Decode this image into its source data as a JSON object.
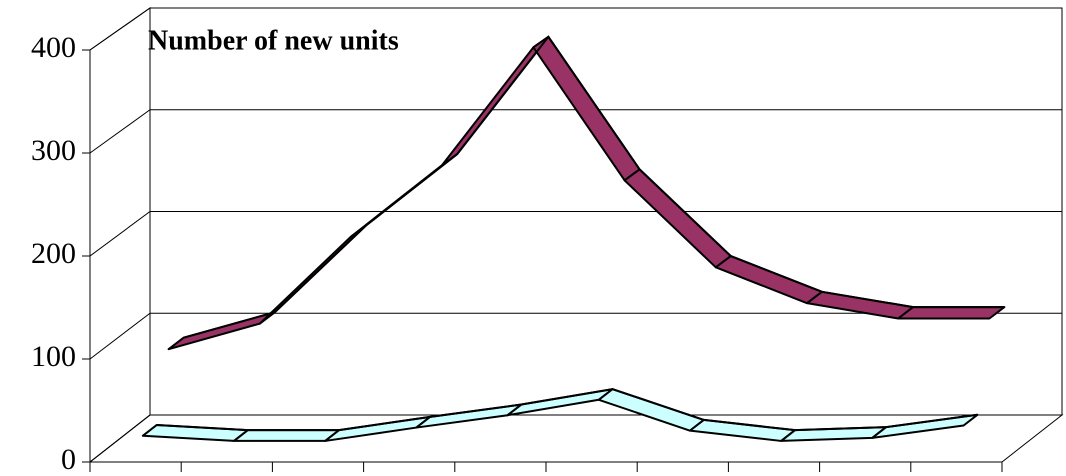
{
  "chart_data": {
    "type": "line3d",
    "title": "Number of new units",
    "categories": [
      null,
      null,
      null,
      null,
      null,
      null,
      null,
      null,
      null,
      null
    ],
    "series": [
      {
        "color": "#993366",
        "values": [
          85,
          110,
          195,
          265,
          380,
          250,
          165,
          130,
          115,
          115
        ]
      },
      {
        "color": "#ccffff",
        "values": [
          20,
          15,
          15,
          28,
          40,
          55,
          25,
          15,
          18,
          30
        ]
      }
    ],
    "ylim": [
      0,
      400
    ],
    "yticks": [
      0,
      100,
      200,
      300,
      400
    ],
    "grid": true
  }
}
